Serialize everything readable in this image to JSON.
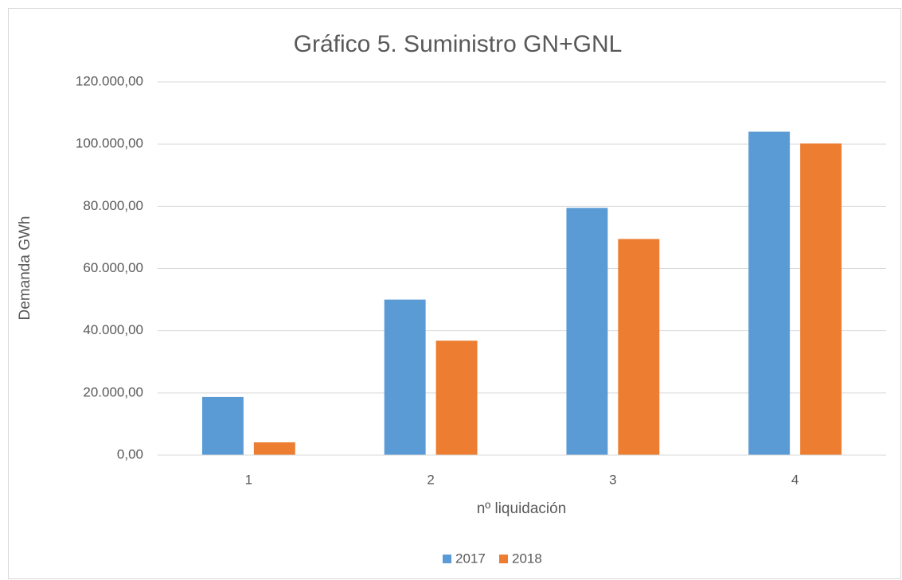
{
  "chart_data": {
    "type": "bar",
    "title": "Gráfico 5. Suministro GN+GNL",
    "x_label": "nº liquidación",
    "y_label": "Demanda GWh",
    "categories": [
      "1",
      "2",
      "3",
      "4"
    ],
    "series": [
      {
        "name": "2017",
        "color": "#5b9bd5",
        "values": [
          18700,
          50000,
          79500,
          104000
        ]
      },
      {
        "name": "2018",
        "color": "#ed7d31",
        "values": [
          4100,
          36800,
          69500,
          100200
        ]
      }
    ],
    "ylim": [
      0,
      120000
    ],
    "yticks": [
      {
        "value": 0,
        "label": "0,00"
      },
      {
        "value": 20000,
        "label": "20.000,00"
      },
      {
        "value": 40000,
        "label": "40.000,00"
      },
      {
        "value": 60000,
        "label": "60.000,00"
      },
      {
        "value": 80000,
        "label": "80.000,00"
      },
      {
        "value": 100000,
        "label": "100.000,00"
      },
      {
        "value": 120000,
        "label": "120.000,00"
      }
    ],
    "grid": true,
    "legend": "bottom"
  }
}
